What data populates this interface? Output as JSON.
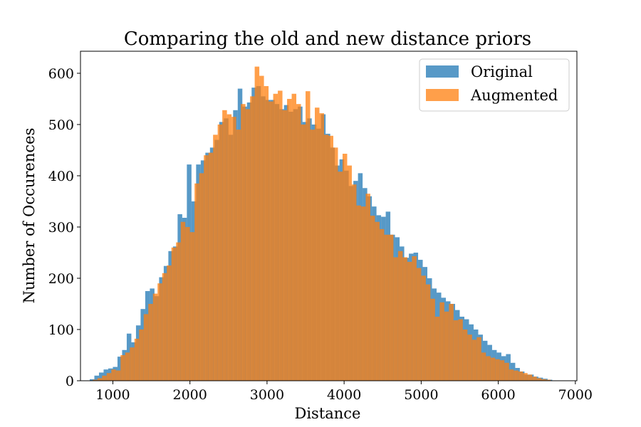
{
  "chart_data": {
    "type": "bar",
    "title": "Comparing the old and new distance priors",
    "xlabel": "Distance",
    "ylabel": "Number of Occurences",
    "xlim": [
      580,
      7020
    ],
    "ylim": [
      0,
      643
    ],
    "xticks": [
      1000,
      2000,
      3000,
      4000,
      5000,
      6000,
      7000
    ],
    "yticks": [
      0,
      100,
      200,
      300,
      400,
      500,
      600
    ],
    "grid": false,
    "legend_position": "top-right",
    "bin_width": 60,
    "series": [
      {
        "name": "Original",
        "color": "#1f77b4",
        "opacity": 0.75,
        "bins": [
          [
            700,
            3
          ],
          [
            760,
            10
          ],
          [
            820,
            16
          ],
          [
            880,
            22
          ],
          [
            940,
            24
          ],
          [
            1000,
            27
          ],
          [
            1060,
            47
          ],
          [
            1120,
            60
          ],
          [
            1180,
            92
          ],
          [
            1240,
            75
          ],
          [
            1300,
            108
          ],
          [
            1360,
            140
          ],
          [
            1420,
            175
          ],
          [
            1480,
            180
          ],
          [
            1540,
            165
          ],
          [
            1600,
            202
          ],
          [
            1660,
            224
          ],
          [
            1720,
            253
          ],
          [
            1780,
            262
          ],
          [
            1840,
            325
          ],
          [
            1900,
            318
          ],
          [
            1960,
            422
          ],
          [
            2020,
            350
          ],
          [
            2080,
            422
          ],
          [
            2140,
            430
          ],
          [
            2200,
            445
          ],
          [
            2260,
            455
          ],
          [
            2320,
            470
          ],
          [
            2380,
            505
          ],
          [
            2440,
            512
          ],
          [
            2500,
            480
          ],
          [
            2560,
            528
          ],
          [
            2620,
            570
          ],
          [
            2680,
            535
          ],
          [
            2740,
            543
          ],
          [
            2800,
            572
          ],
          [
            2860,
            575
          ],
          [
            2920,
            555
          ],
          [
            2980,
            548
          ],
          [
            3040,
            548
          ],
          [
            3100,
            540
          ],
          [
            3160,
            530
          ],
          [
            3220,
            538
          ],
          [
            3280,
            525
          ],
          [
            3340,
            530
          ],
          [
            3400,
            535
          ],
          [
            3460,
            505
          ],
          [
            3520,
            512
          ],
          [
            3580,
            500
          ],
          [
            3640,
            492
          ],
          [
            3700,
            520
          ],
          [
            3760,
            482
          ],
          [
            3820,
            455
          ],
          [
            3880,
            420
          ],
          [
            3940,
            432
          ],
          [
            4000,
            410
          ],
          [
            4060,
            380
          ],
          [
            4120,
            390
          ],
          [
            4180,
            405
          ],
          [
            4240,
            376
          ],
          [
            4300,
            360
          ],
          [
            4360,
            340
          ],
          [
            4420,
            323
          ],
          [
            4480,
            320
          ],
          [
            4540,
            330
          ],
          [
            4600,
            285
          ],
          [
            4660,
            280
          ],
          [
            4720,
            262
          ],
          [
            4780,
            240
          ],
          [
            4840,
            248
          ],
          [
            4900,
            250
          ],
          [
            4960,
            236
          ],
          [
            5020,
            222
          ],
          [
            5080,
            200
          ],
          [
            5140,
            180
          ],
          [
            5200,
            172
          ],
          [
            5260,
            162
          ],
          [
            5320,
            155
          ],
          [
            5380,
            150
          ],
          [
            5440,
            138
          ],
          [
            5500,
            125
          ],
          [
            5560,
            120
          ],
          [
            5620,
            110
          ],
          [
            5680,
            100
          ],
          [
            5740,
            90
          ],
          [
            5800,
            78
          ],
          [
            5860,
            70
          ],
          [
            5920,
            60
          ],
          [
            5980,
            55
          ],
          [
            6040,
            48
          ],
          [
            6100,
            52
          ],
          [
            6160,
            35
          ],
          [
            6220,
            25
          ],
          [
            6280,
            18
          ],
          [
            6340,
            12
          ],
          [
            6400,
            12
          ],
          [
            6460,
            8
          ],
          [
            6520,
            6
          ],
          [
            6580,
            4
          ],
          [
            6640,
            2
          ]
        ]
      },
      {
        "name": "Augmented",
        "color": "#ff7f0e",
        "opacity": 0.75,
        "bins": [
          [
            740,
            2
          ],
          [
            800,
            5
          ],
          [
            860,
            10
          ],
          [
            920,
            15
          ],
          [
            980,
            22
          ],
          [
            1040,
            20
          ],
          [
            1100,
            50
          ],
          [
            1160,
            55
          ],
          [
            1220,
            65
          ],
          [
            1280,
            82
          ],
          [
            1340,
            100
          ],
          [
            1400,
            130
          ],
          [
            1460,
            150
          ],
          [
            1520,
            170
          ],
          [
            1580,
            190
          ],
          [
            1640,
            210
          ],
          [
            1700,
            225
          ],
          [
            1760,
            260
          ],
          [
            1820,
            270
          ],
          [
            1880,
            310
          ],
          [
            1940,
            300
          ],
          [
            2000,
            290
          ],
          [
            2060,
            385
          ],
          [
            2120,
            405
          ],
          [
            2180,
            440
          ],
          [
            2240,
            445
          ],
          [
            2300,
            480
          ],
          [
            2360,
            500
          ],
          [
            2420,
            528
          ],
          [
            2480,
            520
          ],
          [
            2540,
            515
          ],
          [
            2600,
            490
          ],
          [
            2660,
            540
          ],
          [
            2720,
            530
          ],
          [
            2780,
            555
          ],
          [
            2840,
            613
          ],
          [
            2900,
            595
          ],
          [
            2960,
            575
          ],
          [
            3020,
            545
          ],
          [
            3080,
            560
          ],
          [
            3140,
            566
          ],
          [
            3200,
            528
          ],
          [
            3260,
            550
          ],
          [
            3320,
            560
          ],
          [
            3380,
            540
          ],
          [
            3440,
            500
          ],
          [
            3500,
            565
          ],
          [
            3560,
            490
          ],
          [
            3620,
            533
          ],
          [
            3680,
            522
          ],
          [
            3740,
            480
          ],
          [
            3800,
            478
          ],
          [
            3860,
            455
          ],
          [
            3920,
            408
          ],
          [
            3980,
            443
          ],
          [
            4040,
            420
          ],
          [
            4100,
            383
          ],
          [
            4160,
            342
          ],
          [
            4220,
            340
          ],
          [
            4280,
            365
          ],
          [
            4340,
            322
          ],
          [
            4400,
            310
          ],
          [
            4460,
            296
          ],
          [
            4520,
            285
          ],
          [
            4580,
            285
          ],
          [
            4640,
            241
          ],
          [
            4700,
            253
          ],
          [
            4760,
            241
          ],
          [
            4820,
            232
          ],
          [
            4880,
            243
          ],
          [
            4940,
            220
          ],
          [
            5000,
            205
          ],
          [
            5060,
            188
          ],
          [
            5120,
            160
          ],
          [
            5180,
            125
          ],
          [
            5240,
            153
          ],
          [
            5300,
            135
          ],
          [
            5360,
            150
          ],
          [
            5420,
            118
          ],
          [
            5480,
            120
          ],
          [
            5540,
            100
          ],
          [
            5600,
            90
          ],
          [
            5660,
            80
          ],
          [
            5720,
            85
          ],
          [
            5780,
            55
          ],
          [
            5840,
            48
          ],
          [
            5900,
            45
          ],
          [
            5960,
            42
          ],
          [
            6020,
            40
          ],
          [
            6080,
            35
          ],
          [
            6140,
            22
          ],
          [
            6200,
            20
          ],
          [
            6260,
            18
          ],
          [
            6320,
            15
          ],
          [
            6380,
            12
          ],
          [
            6440,
            8
          ],
          [
            6500,
            5
          ],
          [
            6560,
            3
          ],
          [
            6620,
            2
          ]
        ]
      }
    ]
  }
}
